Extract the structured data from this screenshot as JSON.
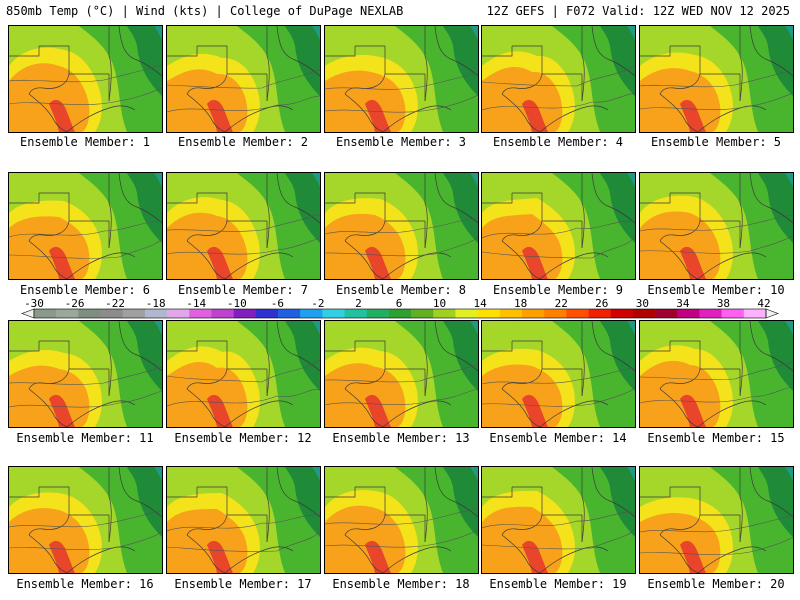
{
  "header": {
    "left": "850mb Temp (°C) | Wind (kts) | College of DuPage NEXLAB",
    "right": "12Z GEFS | F072 Valid: 12Z WED NOV 12 2025"
  },
  "members": [
    "Ensemble Member: 1",
    "Ensemble Member: 2",
    "Ensemble Member: 3",
    "Ensemble Member: 4",
    "Ensemble Member: 5",
    "Ensemble Member: 6",
    "Ensemble Member: 7",
    "Ensemble Member: 8",
    "Ensemble Member: 9",
    "Ensemble Member: 10",
    "Ensemble Member: 11",
    "Ensemble Member: 12",
    "Ensemble Member: 13",
    "Ensemble Member: 14",
    "Ensemble Member: 15",
    "Ensemble Member: 16",
    "Ensemble Member: 17",
    "Ensemble Member: 18",
    "Ensemble Member: 19",
    "Ensemble Member: 20"
  ],
  "colorbar": {
    "labels": [
      "-30",
      "-26",
      "-22",
      "-18",
      "-14",
      "-10",
      "-6",
      "-2",
      "2",
      "6",
      "10",
      "14",
      "18",
      "22",
      "26",
      "30",
      "34",
      "38",
      "42"
    ],
    "colors": [
      "#8a9a8a",
      "#9aa89a",
      "#7f8f7f",
      "#8c8c8c",
      "#a0a0a0",
      "#b0b8d0",
      "#e0a8e8",
      "#e060e0",
      "#c040d0",
      "#8020c0",
      "#3030d0",
      "#2060e0",
      "#20a0f0",
      "#30d0e0",
      "#20c0a0",
      "#20b060",
      "#30a030",
      "#60b020",
      "#a0d020",
      "#e0f020",
      "#ffe000",
      "#ffc000",
      "#ffa000",
      "#ff8000",
      "#ff5000",
      "#f02000",
      "#d00000",
      "#b00000",
      "#a00030",
      "#c00080",
      "#e020c0",
      "#ff60f0",
      "#ffb0ff"
    ]
  },
  "palette": {
    "orange": "#f7a21a",
    "yellow": "#f4e21a",
    "lightgreen": "#a5d62a",
    "green": "#49b52e",
    "darkgreen": "#1f8a37",
    "red": "#e8452a",
    "teal": "#1f9a86"
  }
}
